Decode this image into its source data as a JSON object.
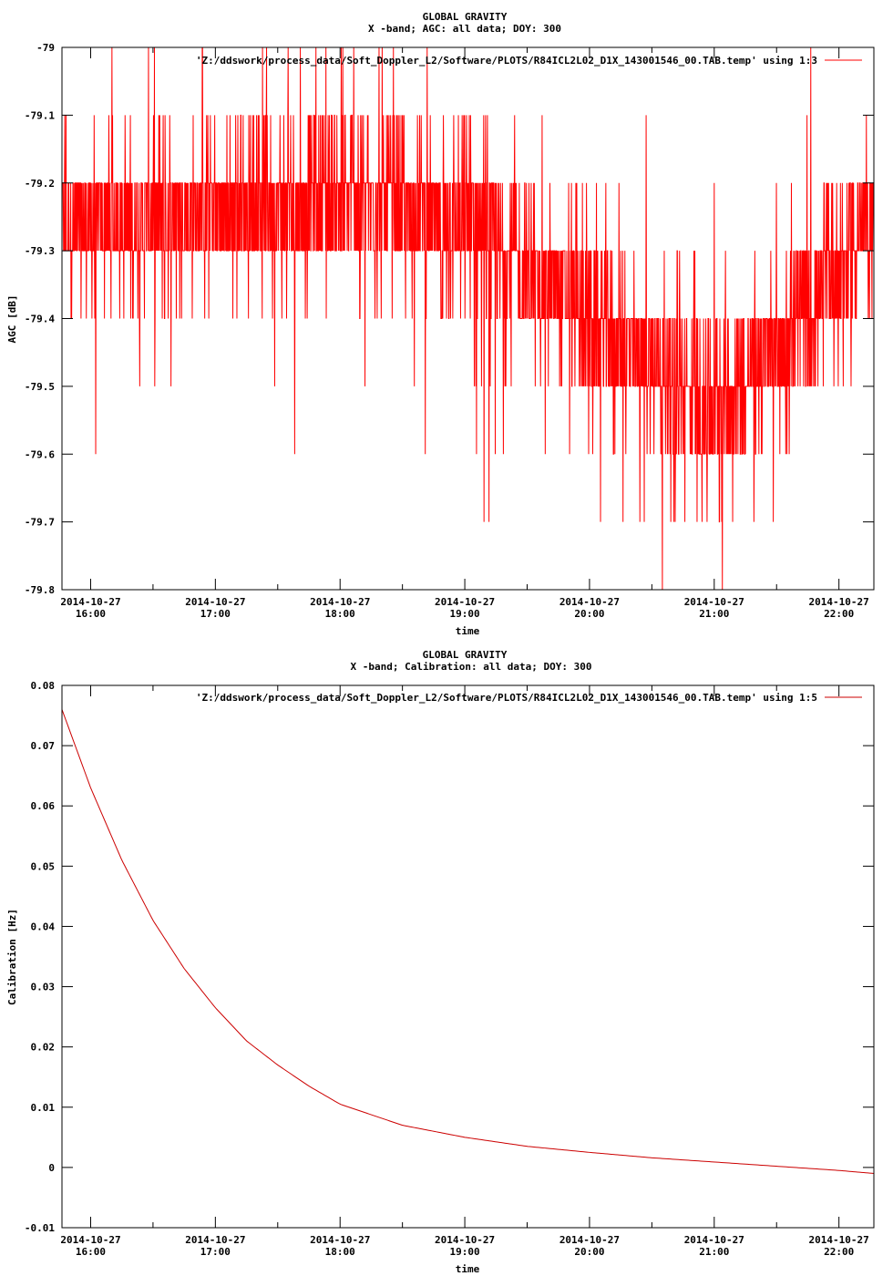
{
  "chart_data": [
    {
      "type": "line",
      "title": "GLOBAL GRAVITY",
      "subtitle": "X -band; AGC: all data; DOY: 300",
      "xlabel": "time",
      "ylabel": "AGC [dB]",
      "ylim": [
        -79.8,
        -79.0
      ],
      "yticks": [
        "-79",
        "-79.1",
        "-79.2",
        "-79.3",
        "-79.4",
        "-79.5",
        "-79.6",
        "-79.7",
        "-79.8"
      ],
      "ytick_values": [
        -79.0,
        -79.1,
        -79.2,
        -79.3,
        -79.4,
        -79.5,
        -79.6,
        -79.7,
        -79.8
      ],
      "xlim_hours": [
        15.77,
        22.28
      ],
      "xtick_hours": [
        16,
        17,
        18,
        19,
        20,
        21,
        22
      ],
      "xtick_dates": [
        "2014-10-27",
        "2014-10-27",
        "2014-10-27",
        "2014-10-27",
        "2014-10-27",
        "2014-10-27",
        "2014-10-27"
      ],
      "xtick_times": [
        "16:00",
        "17:00",
        "18:00",
        "19:00",
        "20:00",
        "21:00",
        "22:00"
      ],
      "legend": "'Z:/ddswork/process_data/Soft_Doppler_L2/Software/PLOTS/R84ICL2L02_D1X_143001546_00.TAB.temp' using 1:3",
      "legend_position": "top-right",
      "grid": false,
      "series_color": "#ff0000",
      "trend": {
        "x": [
          15.77,
          16.5,
          17.0,
          17.5,
          18.0,
          18.5,
          19.0,
          19.5,
          20.0,
          20.5,
          21.0,
          21.5,
          22.0,
          22.28
        ],
        "y": [
          -79.27,
          -79.25,
          -79.24,
          -79.23,
          -79.22,
          -79.24,
          -79.27,
          -79.33,
          -79.4,
          -79.47,
          -79.53,
          -79.45,
          -79.32,
          -79.25
        ]
      },
      "noise_range": [
        -79.8,
        -79.0
      ]
    },
    {
      "type": "line",
      "title": "GLOBAL GRAVITY",
      "subtitle": "X -band; Calibration: all data; DOY: 300",
      "xlabel": "time",
      "ylabel": "Calibration [Hz]",
      "ylim": [
        -0.01,
        0.08
      ],
      "yticks": [
        "0.08",
        "0.07",
        "0.06",
        "0.05",
        "0.04",
        "0.03",
        "0.02",
        "0.01",
        "0",
        "-0.01"
      ],
      "ytick_values": [
        0.08,
        0.07,
        0.06,
        0.05,
        0.04,
        0.03,
        0.02,
        0.01,
        0.0,
        -0.01
      ],
      "xlim_hours": [
        15.77,
        22.28
      ],
      "xtick_hours": [
        16,
        17,
        18,
        19,
        20,
        21,
        22
      ],
      "xtick_dates": [
        "2014-10-27",
        "2014-10-27",
        "2014-10-27",
        "2014-10-27",
        "2014-10-27",
        "2014-10-27",
        "2014-10-27"
      ],
      "xtick_times": [
        "16:00",
        "17:00",
        "18:00",
        "19:00",
        "20:00",
        "21:00",
        "22:00"
      ],
      "legend": "'Z:/ddswork/process_data/Soft_Doppler_L2/Software/PLOTS/R84ICL2L02_D1X_143001546_00.TAB.temp' using 1:5",
      "legend_position": "top-right",
      "grid": false,
      "series_color": "#cc0000",
      "series": {
        "x": [
          15.77,
          16.0,
          16.25,
          16.5,
          16.75,
          17.0,
          17.25,
          17.5,
          17.75,
          18.0,
          18.5,
          19.0,
          19.5,
          20.0,
          20.5,
          21.0,
          21.5,
          22.0,
          22.28
        ],
        "y": [
          0.076,
          0.063,
          0.051,
          0.041,
          0.033,
          0.0265,
          0.021,
          0.017,
          0.0135,
          0.0105,
          0.007,
          0.005,
          0.0035,
          0.0025,
          0.0016,
          0.0009,
          0.0002,
          -0.0005,
          -0.001
        ]
      }
    }
  ]
}
